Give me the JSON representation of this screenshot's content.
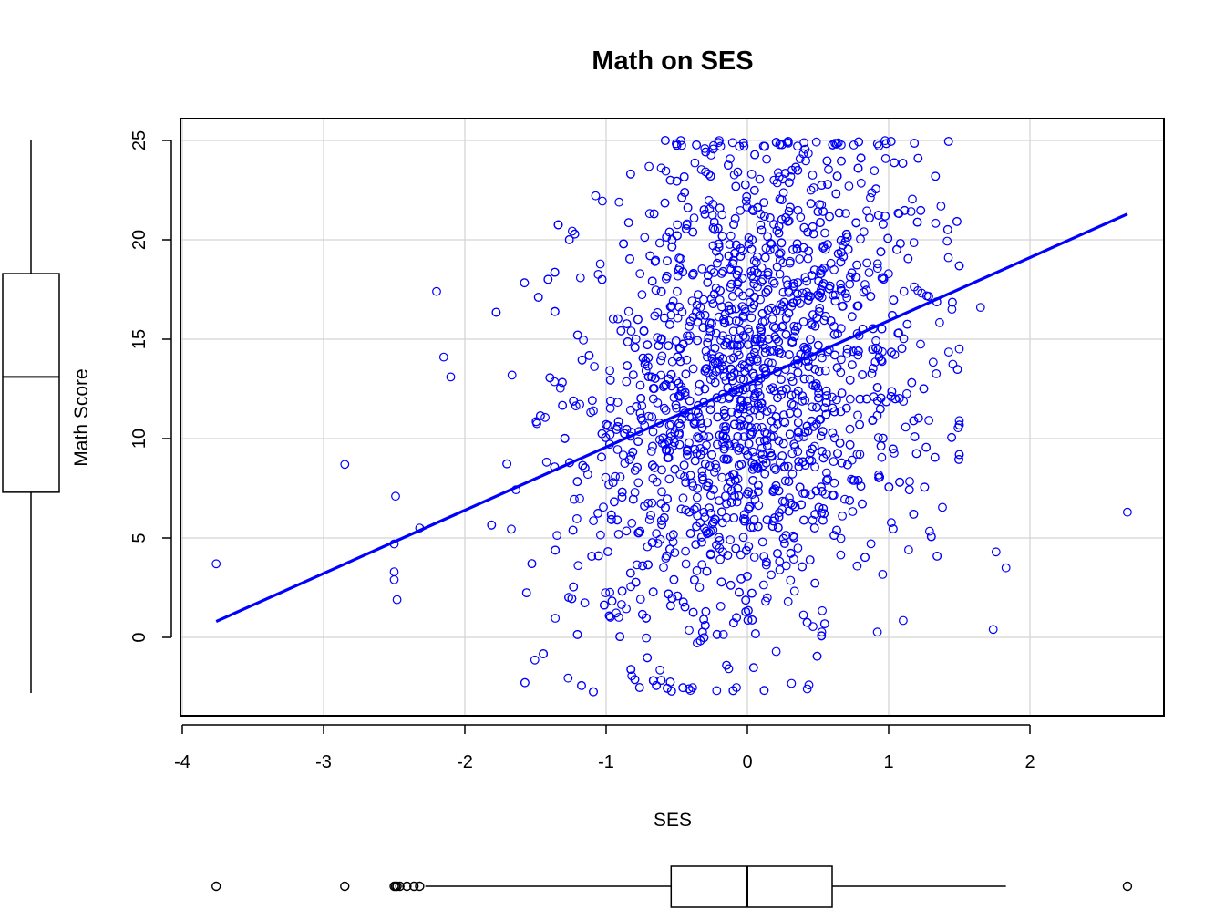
{
  "colors": {
    "points": "#0000ff",
    "fit_line": "#0000ff",
    "grid": "#d3d3d3",
    "frame": "#000000",
    "background": "#ffffff"
  },
  "chart_data": {
    "type": "scatter",
    "title": "Math on SES",
    "xlabel": "SES",
    "ylabel": "Math Score",
    "xlim": [
      -4,
      2.7
    ],
    "ylim": [
      -2.8,
      25
    ],
    "x_ticks": [
      -4,
      -3,
      -2,
      -1,
      0,
      1,
      2
    ],
    "y_ticks": [
      0,
      5,
      10,
      15,
      20,
      25
    ],
    "grid": true,
    "point_style": "open circle",
    "n_points_approx": 7185,
    "points_note": "dense cloud; SES mostly between -1.8 and 1.5, math between -2.8 and 25",
    "outlier_points": [
      {
        "x": -3.76,
        "y": 3.7
      },
      {
        "x": -2.85,
        "y": 8.7
      },
      {
        "x": -2.49,
        "y": 7.1
      },
      {
        "x": -2.5,
        "y": 4.7
      },
      {
        "x": -2.5,
        "y": 3.3
      },
      {
        "x": -2.5,
        "y": 2.9
      },
      {
        "x": -2.48,
        "y": 1.9
      },
      {
        "x": -2.32,
        "y": 5.5
      },
      {
        "x": -2.2,
        "y": 17.4
      },
      {
        "x": -2.15,
        "y": 14.1
      },
      {
        "x": -2.1,
        "y": 13.1
      },
      {
        "x": 1.65,
        "y": 16.6
      },
      {
        "x": 1.74,
        "y": 0.4
      },
      {
        "x": 1.76,
        "y": 4.3
      },
      {
        "x": 1.83,
        "y": 3.5
      },
      {
        "x": 2.69,
        "y": 6.3
      }
    ],
    "fit_line": {
      "x": [
        -3.76,
        2.69
      ],
      "y": [
        0.8,
        21.3
      ]
    },
    "boxplot_x": {
      "orientation": "horizontal",
      "min_whisker": -2.28,
      "q1": -0.54,
      "median": 0.0,
      "q3": 0.6,
      "max_whisker": 1.83,
      "outliers": [
        -3.76,
        -2.85,
        -2.5,
        -2.49,
        -2.48,
        -2.46,
        -2.41,
        -2.36,
        -2.32,
        2.69
      ]
    },
    "boxplot_y": {
      "orientation": "vertical",
      "min_whisker": -2.8,
      "q1": 7.3,
      "median": 13.1,
      "q3": 18.3,
      "max_whisker": 25.0,
      "outliers": []
    }
  }
}
